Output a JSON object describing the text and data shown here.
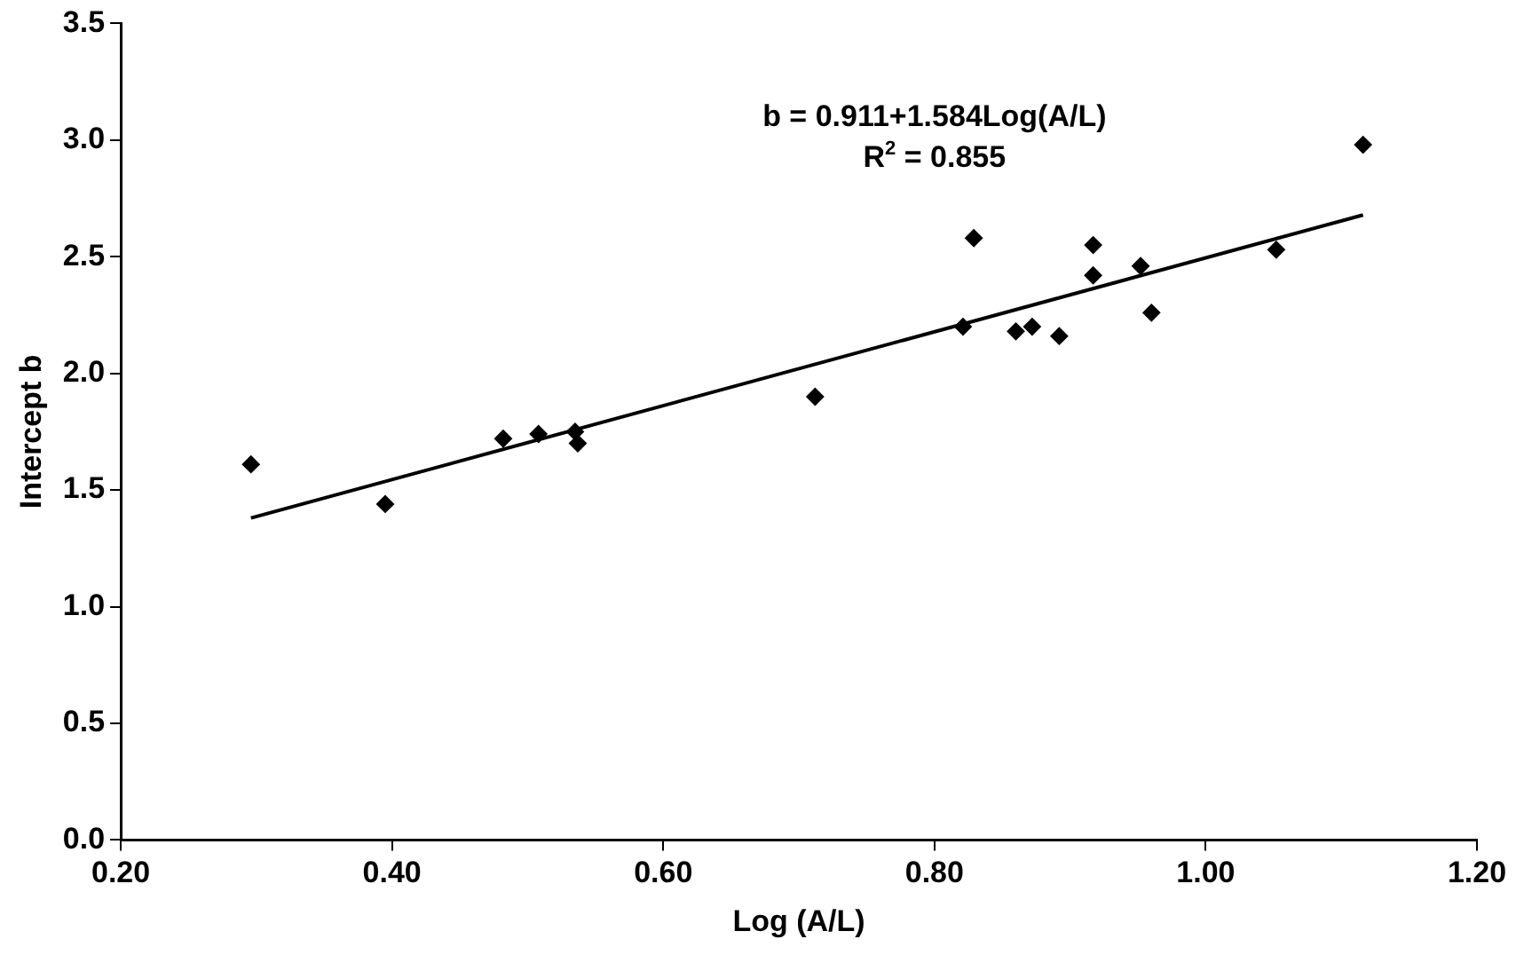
{
  "chart_data": {
    "type": "scatter",
    "xlabel": "Log (A/L)",
    "ylabel": "Intercept b",
    "annotations": [
      "b = 0.911+1.584Log(A/L)",
      "R$^{2}$ = 0.855"
    ],
    "xlim": [
      0.2,
      1.2
    ],
    "xticks": [
      {
        "value": 0.2,
        "label": "0.20"
      },
      {
        "value": 0.4,
        "label": "0.40"
      },
      {
        "value": 0.6,
        "label": "0.60"
      },
      {
        "value": 0.8,
        "label": "0.80"
      },
      {
        "value": 1.0,
        "label": "1.00"
      },
      {
        "value": 1.2,
        "label": "1.20"
      }
    ],
    "ylim": [
      0,
      3.5
    ],
    "yticks": [
      {
        "value": 0,
        "label": "0.0"
      },
      {
        "value": 0.5,
        "label": "0.5"
      },
      {
        "value": 1,
        "label": "1.0"
      },
      {
        "value": 1.5,
        "label": "1.5"
      },
      {
        "value": 2,
        "label": "2.0"
      },
      {
        "value": 2.5,
        "label": "2.5"
      },
      {
        "value": 3,
        "label": "3.0"
      },
      {
        "value": 3.5,
        "label": "3.5"
      }
    ],
    "grid": false,
    "legend": false,
    "marker": "diamond",
    "series": [
      {
        "color": "#000000",
        "x": [
          0.296,
          0.395,
          0.482,
          0.508,
          0.535,
          0.537,
          0.712,
          0.821,
          0.829,
          0.86,
          0.872,
          0.892,
          0.917,
          0.917,
          0.952,
          0.96,
          1.052,
          1.116
        ],
        "values": [
          1.61,
          1.44,
          1.72,
          1.74,
          1.75,
          1.7,
          1.9,
          2.2,
          2.58,
          2.18,
          2.2,
          2.16,
          2.55,
          2.42,
          2.46,
          2.26,
          2.53,
          2.98
        ]
      },
      {
        "type": "line",
        "color": "#000000",
        "marker": "none",
        "line_style": "solid",
        "x": [
          0.296,
          1.116
        ],
        "values": [
          1.38,
          2.679
        ]
      }
    ]
  }
}
